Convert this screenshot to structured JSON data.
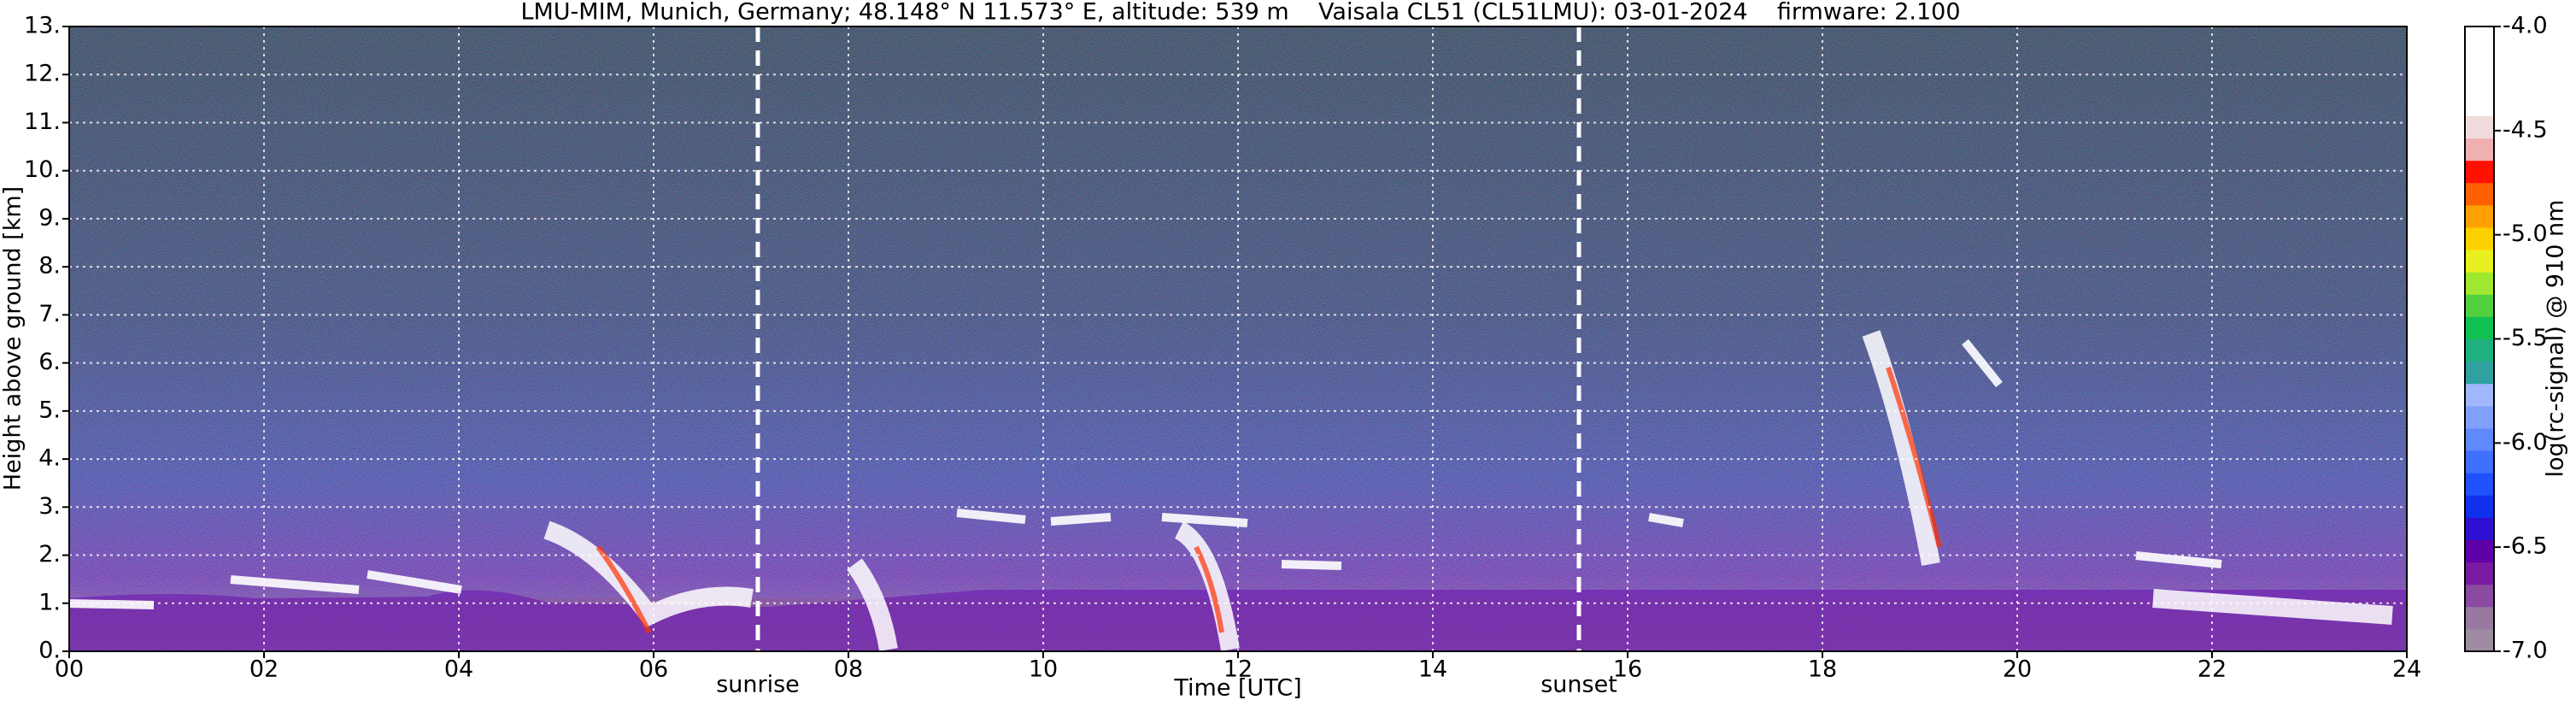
{
  "chart_data": {
    "type": "heatmap",
    "title": "LMU-MIM, Munich, Germany; 48.148° N 11.573° E, altitude: 539 m    Vaisala CL51 (CL51LMU): 03-01-2024    firmware: 2.100",
    "xlabel": "Time [UTC]",
    "ylabel": "Height above ground [km]",
    "xlim": [
      0,
      24
    ],
    "xticks": [
      {
        "value": 0,
        "label": "00"
      },
      {
        "value": 2,
        "label": "02"
      },
      {
        "value": 4,
        "label": "04"
      },
      {
        "value": 6,
        "label": "06"
      },
      {
        "value": 8,
        "label": "08"
      },
      {
        "value": 10,
        "label": "10"
      },
      {
        "value": 12,
        "label": "12"
      },
      {
        "value": 14,
        "label": "14"
      },
      {
        "value": 16,
        "label": "16"
      },
      {
        "value": 18,
        "label": "18"
      },
      {
        "value": 20,
        "label": "20"
      },
      {
        "value": 22,
        "label": "22"
      },
      {
        "value": 24,
        "label": "24"
      }
    ],
    "ylim": [
      0,
      13
    ],
    "yticks": [
      {
        "value": 0,
        "label": "0."
      },
      {
        "value": 1,
        "label": "1."
      },
      {
        "value": 2,
        "label": "2."
      },
      {
        "value": 3,
        "label": "3."
      },
      {
        "value": 4,
        "label": "4."
      },
      {
        "value": 5,
        "label": "5."
      },
      {
        "value": 6,
        "label": "6."
      },
      {
        "value": 7,
        "label": "7."
      },
      {
        "value": 8,
        "label": "8."
      },
      {
        "value": 9,
        "label": "9."
      },
      {
        "value": 10,
        "label": "10."
      },
      {
        "value": 11,
        "label": "11."
      },
      {
        "value": 12,
        "label": "12."
      },
      {
        "value": 13,
        "label": "13."
      }
    ],
    "grid": true,
    "annotations": [
      {
        "text": "sunrise",
        "x": 7.07
      },
      {
        "text": "sunset",
        "x": 15.5
      }
    ],
    "colorbar": {
      "label": "log(rc-signal) @ 910 nm",
      "lim": [
        -7,
        -4
      ],
      "ticks": [
        {
          "value": -4,
          "label": "-4.0"
        },
        {
          "value": -4.5,
          "label": "-4.5"
        },
        {
          "value": -5,
          "label": "-5.0"
        },
        {
          "value": -5.5,
          "label": "-5.5"
        },
        {
          "value": -6,
          "label": "-6.0"
        },
        {
          "value": -6.5,
          "label": "-6.5"
        },
        {
          "value": -7,
          "label": "-7.0"
        }
      ],
      "colors": [
        "#a08ca0",
        "#987aa0",
        "#8a4aa0",
        "#7a1aa0",
        "#6000a8",
        "#3010d0",
        "#1030f0",
        "#2050ff",
        "#4070ff",
        "#6088ff",
        "#80a0ff",
        "#a0b8ff",
        "#30a0a0",
        "#20b080",
        "#10c050",
        "#50d040",
        "#a0e830",
        "#e8f020",
        "#ffd000",
        "#ffa000",
        "#ff6000",
        "#ff1000",
        "#f0b0b0",
        "#f0dcdc",
        "#ffffff",
        "#ffffff",
        "#ffffff",
        "#ffffff"
      ]
    }
  }
}
